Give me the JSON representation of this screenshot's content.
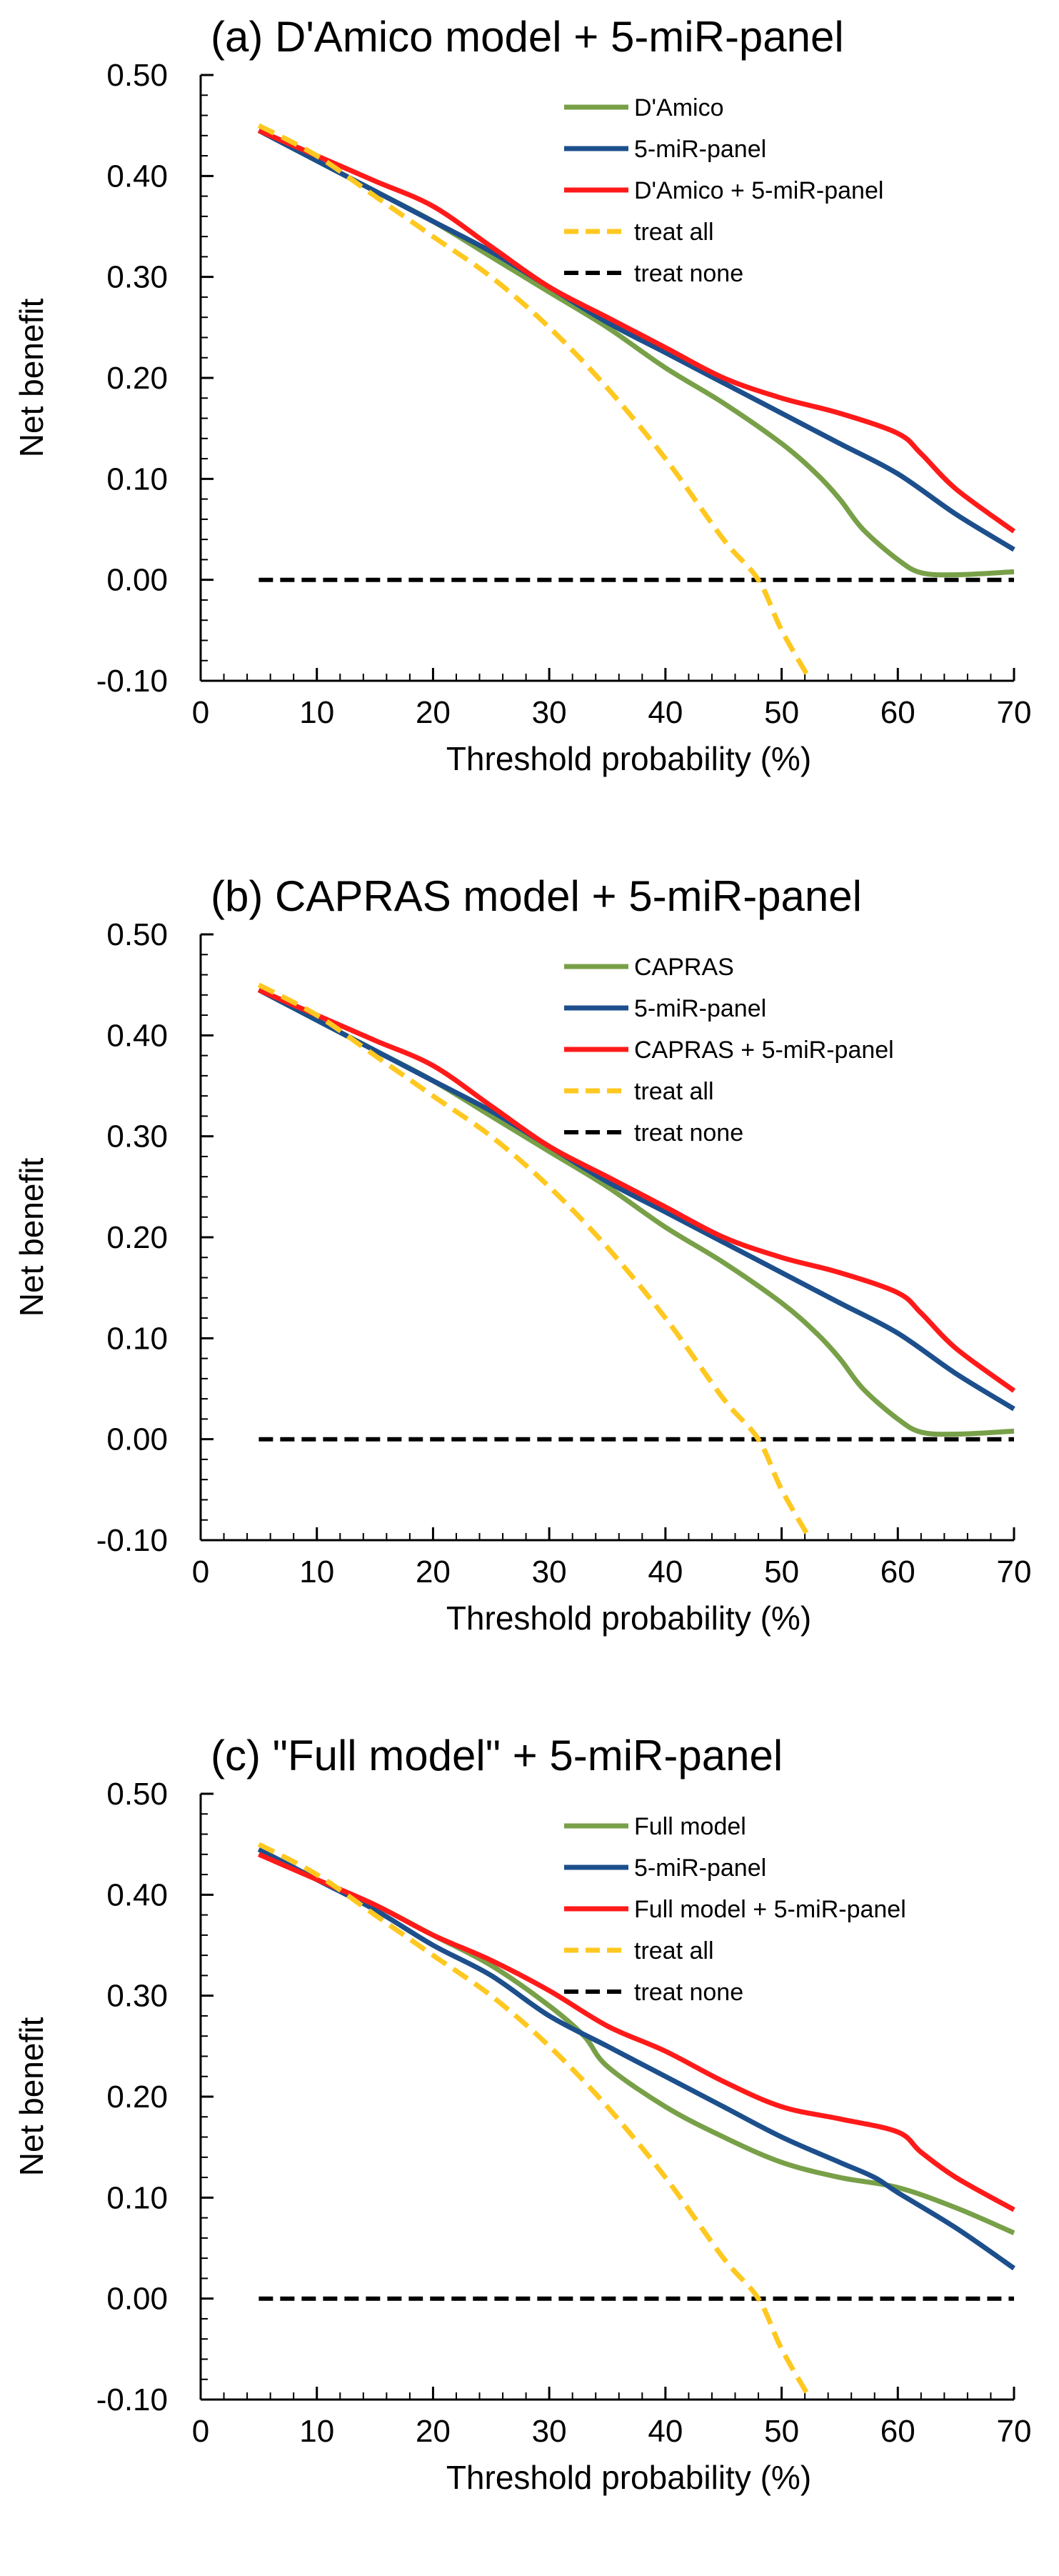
{
  "colors": {
    "green": "#78a048",
    "blue": "#1c4f8c",
    "red": "#ff1a1a",
    "yellow": "#ffc820",
    "black": "#000000"
  },
  "chart_data": [
    {
      "type": "line",
      "title": "(a) D'Amico model + 5-miR-panel",
      "xlabel": "Threshold probability (%)",
      "ylabel": "Net benefit",
      "xlim": [
        0,
        70
      ],
      "ylim": [
        -0.1,
        0.5
      ],
      "x_ticks": [
        "0",
        "10",
        "20",
        "30",
        "40",
        "50",
        "60",
        "70"
      ],
      "y_ticks": [
        "-0.10",
        "0.00",
        "0.10",
        "0.20",
        "0.30",
        "0.40",
        "0.50"
      ],
      "legend_position": "top-right",
      "series": [
        {
          "name": "D'Amico",
          "color_key": "green",
          "style": "solid",
          "x": [
            5,
            10,
            15,
            20,
            25,
            30,
            35,
            40,
            45,
            50,
            53,
            55,
            57,
            60,
            62,
            65,
            70
          ],
          "y": [
            0.445,
            0.415,
            0.385,
            0.355,
            0.32,
            0.285,
            0.25,
            0.21,
            0.175,
            0.135,
            0.105,
            0.08,
            0.05,
            0.02,
            0.007,
            0.005,
            0.008
          ]
        },
        {
          "name": "5-miR-panel",
          "color_key": "blue",
          "style": "solid",
          "x": [
            5,
            10,
            15,
            20,
            25,
            30,
            35,
            40,
            45,
            50,
            55,
            60,
            65,
            70
          ],
          "y": [
            0.445,
            0.415,
            0.385,
            0.355,
            0.325,
            0.29,
            0.255,
            0.225,
            0.195,
            0.165,
            0.135,
            0.105,
            0.065,
            0.03
          ]
        },
        {
          "name": "D'Amico + 5-miR-panel",
          "color_key": "red",
          "style": "solid",
          "x": [
            5,
            10,
            15,
            20,
            25,
            30,
            35,
            40,
            45,
            50,
            55,
            60,
            62,
            65,
            70
          ],
          "y": [
            0.445,
            0.42,
            0.395,
            0.37,
            0.33,
            0.29,
            0.26,
            0.23,
            0.2,
            0.18,
            0.165,
            0.145,
            0.125,
            0.09,
            0.048
          ]
        },
        {
          "name": "treat all",
          "color_key": "yellow",
          "style": "dashed",
          "x": [
            5,
            10,
            15,
            20,
            25,
            30,
            35,
            40,
            45,
            48,
            50,
            52.5
          ],
          "y": [
            0.45,
            0.42,
            0.38,
            0.34,
            0.3,
            0.25,
            0.19,
            0.12,
            0.04,
            0.0,
            -0.05,
            -0.1
          ]
        },
        {
          "name": "treat none",
          "color_key": "black",
          "style": "dashed",
          "x": [
            5,
            70
          ],
          "y": [
            0.0,
            0.0
          ]
        }
      ]
    },
    {
      "type": "line",
      "title": "(b) CAPRAS model + 5-miR-panel",
      "xlabel": "Threshold probability (%)",
      "ylabel": "Net benefit",
      "xlim": [
        0,
        70
      ],
      "ylim": [
        -0.1,
        0.5
      ],
      "x_ticks": [
        "0",
        "10",
        "20",
        "30",
        "40",
        "50",
        "60",
        "70"
      ],
      "y_ticks": [
        "-0.10",
        "0.00",
        "0.10",
        "0.20",
        "0.30",
        "0.40",
        "0.50"
      ],
      "legend_position": "top-right",
      "series": [
        {
          "name": "CAPRAS",
          "color_key": "green",
          "style": "solid",
          "x": [
            5,
            10,
            15,
            20,
            25,
            30,
            35,
            40,
            45,
            50,
            53,
            55,
            57,
            60,
            62,
            65,
            70
          ],
          "y": [
            0.445,
            0.415,
            0.385,
            0.355,
            0.32,
            0.285,
            0.25,
            0.21,
            0.175,
            0.135,
            0.105,
            0.08,
            0.05,
            0.02,
            0.007,
            0.005,
            0.008
          ]
        },
        {
          "name": "5-miR-panel",
          "color_key": "blue",
          "style": "solid",
          "x": [
            5,
            10,
            15,
            20,
            25,
            30,
            35,
            40,
            45,
            50,
            55,
            60,
            65,
            70
          ],
          "y": [
            0.445,
            0.415,
            0.385,
            0.355,
            0.325,
            0.29,
            0.255,
            0.225,
            0.195,
            0.165,
            0.135,
            0.105,
            0.065,
            0.03
          ]
        },
        {
          "name": "CAPRAS + 5-miR-panel",
          "color_key": "red",
          "style": "solid",
          "x": [
            5,
            10,
            15,
            20,
            25,
            30,
            35,
            40,
            45,
            50,
            55,
            60,
            62,
            65,
            70
          ],
          "y": [
            0.445,
            0.42,
            0.395,
            0.37,
            0.33,
            0.29,
            0.26,
            0.23,
            0.2,
            0.18,
            0.165,
            0.145,
            0.125,
            0.09,
            0.048
          ]
        },
        {
          "name": "treat all",
          "color_key": "yellow",
          "style": "dashed",
          "x": [
            5,
            10,
            15,
            20,
            25,
            30,
            35,
            40,
            45,
            48,
            50,
            52.5
          ],
          "y": [
            0.45,
            0.42,
            0.38,
            0.34,
            0.3,
            0.25,
            0.19,
            0.12,
            0.04,
            0.0,
            -0.05,
            -0.1
          ]
        },
        {
          "name": "treat none",
          "color_key": "black",
          "style": "dashed",
          "x": [
            5,
            70
          ],
          "y": [
            0.0,
            0.0
          ]
        }
      ]
    },
    {
      "type": "line",
      "title": "(c) \"Full model\" + 5-miR-panel",
      "xlabel": "Threshold probability (%)",
      "ylabel": "Net benefit",
      "xlim": [
        0,
        70
      ],
      "ylim": [
        -0.1,
        0.5
      ],
      "x_ticks": [
        "0",
        "10",
        "20",
        "30",
        "40",
        "50",
        "60",
        "70"
      ],
      "y_ticks": [
        "-0.10",
        "0.00",
        "0.10",
        "0.20",
        "0.30",
        "0.40",
        "0.50"
      ],
      "legend_position": "top-right",
      "series": [
        {
          "name": "Full model",
          "color_key": "green",
          "style": "solid",
          "x": [
            5,
            10,
            15,
            20,
            25,
            30,
            33,
            35,
            40,
            45,
            50,
            55,
            60,
            65,
            70
          ],
          "y": [
            0.445,
            0.415,
            0.39,
            0.36,
            0.33,
            0.29,
            0.26,
            0.23,
            0.19,
            0.16,
            0.135,
            0.12,
            0.11,
            0.09,
            0.065
          ]
        },
        {
          "name": "5-miR-panel",
          "color_key": "blue",
          "style": "solid",
          "x": [
            5,
            10,
            15,
            20,
            25,
            30,
            35,
            40,
            45,
            50,
            55,
            58,
            60,
            65,
            70
          ],
          "y": [
            0.445,
            0.415,
            0.385,
            0.35,
            0.32,
            0.28,
            0.25,
            0.22,
            0.19,
            0.16,
            0.135,
            0.12,
            0.105,
            0.07,
            0.03
          ]
        },
        {
          "name": "Full model + 5-miR-panel",
          "color_key": "red",
          "style": "solid",
          "x": [
            5,
            10,
            15,
            20,
            25,
            30,
            35,
            40,
            45,
            50,
            55,
            60,
            62,
            65,
            70
          ],
          "y": [
            0.44,
            0.415,
            0.39,
            0.36,
            0.335,
            0.305,
            0.27,
            0.245,
            0.215,
            0.19,
            0.178,
            0.165,
            0.145,
            0.12,
            0.088
          ]
        },
        {
          "name": "treat all",
          "color_key": "yellow",
          "style": "dashed",
          "x": [
            5,
            10,
            15,
            20,
            25,
            30,
            35,
            40,
            45,
            48,
            50,
            52.5
          ],
          "y": [
            0.45,
            0.42,
            0.38,
            0.34,
            0.3,
            0.25,
            0.19,
            0.12,
            0.04,
            0.0,
            -0.05,
            -0.1
          ]
        },
        {
          "name": "treat none",
          "color_key": "black",
          "style": "dashed",
          "x": [
            5,
            70
          ],
          "y": [
            0.0,
            0.0
          ]
        }
      ]
    }
  ]
}
